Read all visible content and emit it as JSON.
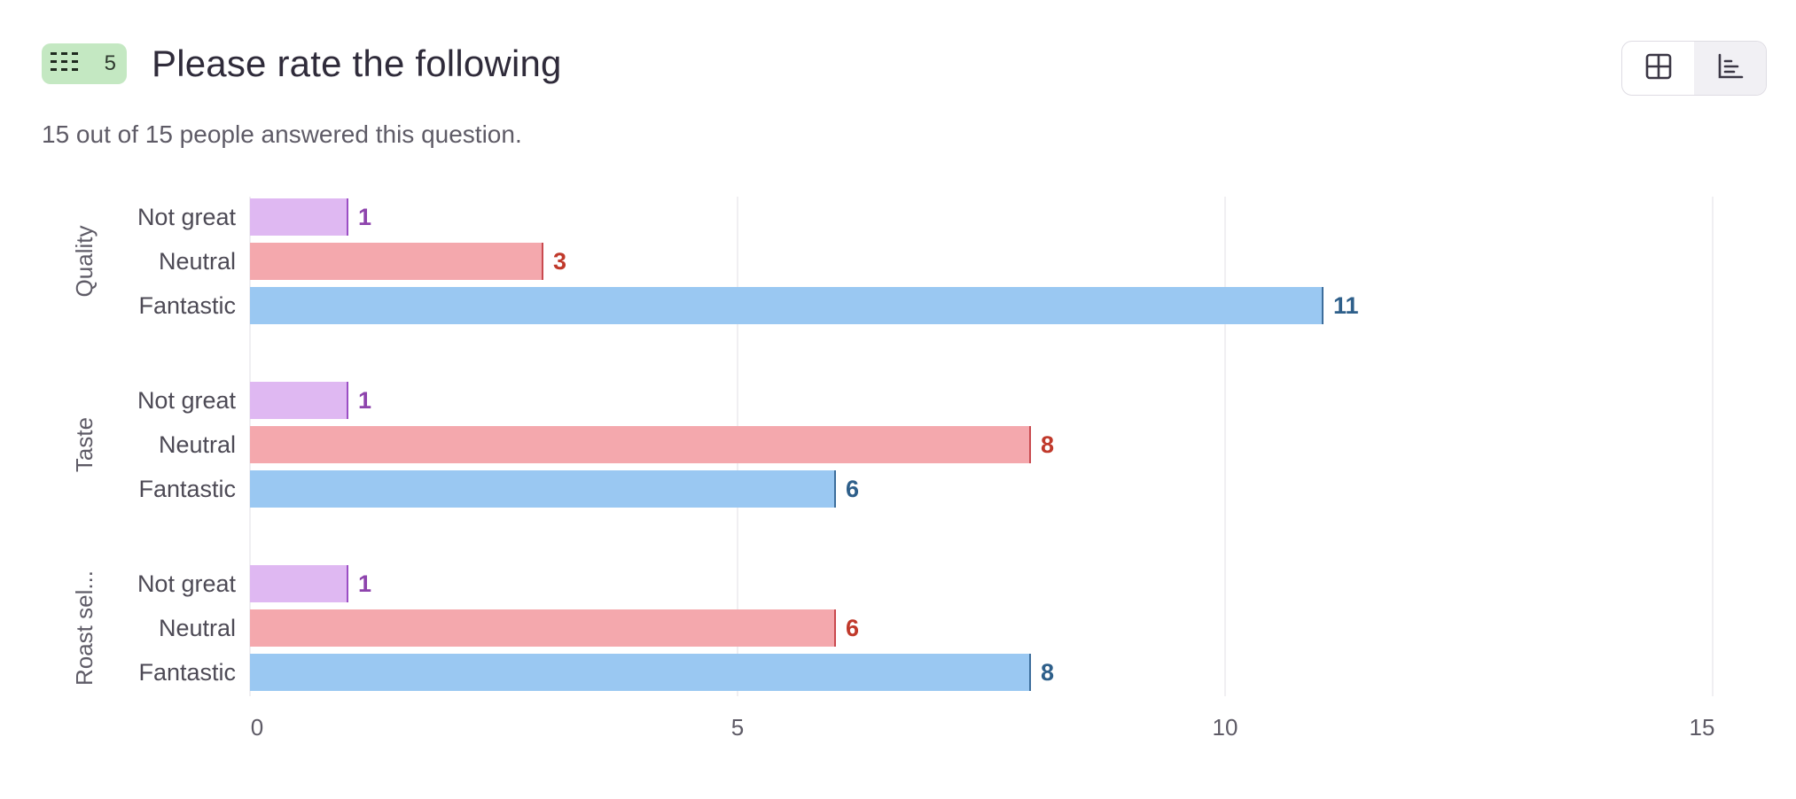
{
  "header": {
    "question_number": "5",
    "title": "Please rate the following",
    "subtitle": "15 out of 15 people answered this question.",
    "question_type_icon": "matrix-grid-icon"
  },
  "view_toggle": {
    "options": [
      {
        "name": "table-view-button",
        "icon": "table-grid-icon",
        "active": false
      },
      {
        "name": "chart-view-button",
        "icon": "bar-chart-icon",
        "active": true
      }
    ]
  },
  "chart_data": {
    "type": "bar",
    "orientation": "horizontal",
    "title": "",
    "xlabel": "",
    "ylabel": "",
    "xlim": [
      0,
      15
    ],
    "x_ticks": [
      0,
      5,
      10,
      15
    ],
    "grid": true,
    "groups": [
      "Quality",
      "Taste",
      "Roast sel..."
    ],
    "categories": [
      "Not great",
      "Neutral",
      "Fantastic"
    ],
    "series": [
      {
        "category": "Not great",
        "color": "#dfb8f2",
        "edge": "#9b4fc4",
        "label_color": "#8e44ad",
        "values": [
          1,
          1,
          1
        ]
      },
      {
        "category": "Neutral",
        "color": "#f4a8ad",
        "edge": "#c94a4f",
        "label_color": "#c0392b",
        "values": [
          3,
          8,
          6
        ]
      },
      {
        "category": "Fantastic",
        "color": "#9ac8f2",
        "edge": "#3d6e9c",
        "label_color": "#2e5f8a",
        "values": [
          11,
          6,
          8
        ]
      }
    ]
  }
}
